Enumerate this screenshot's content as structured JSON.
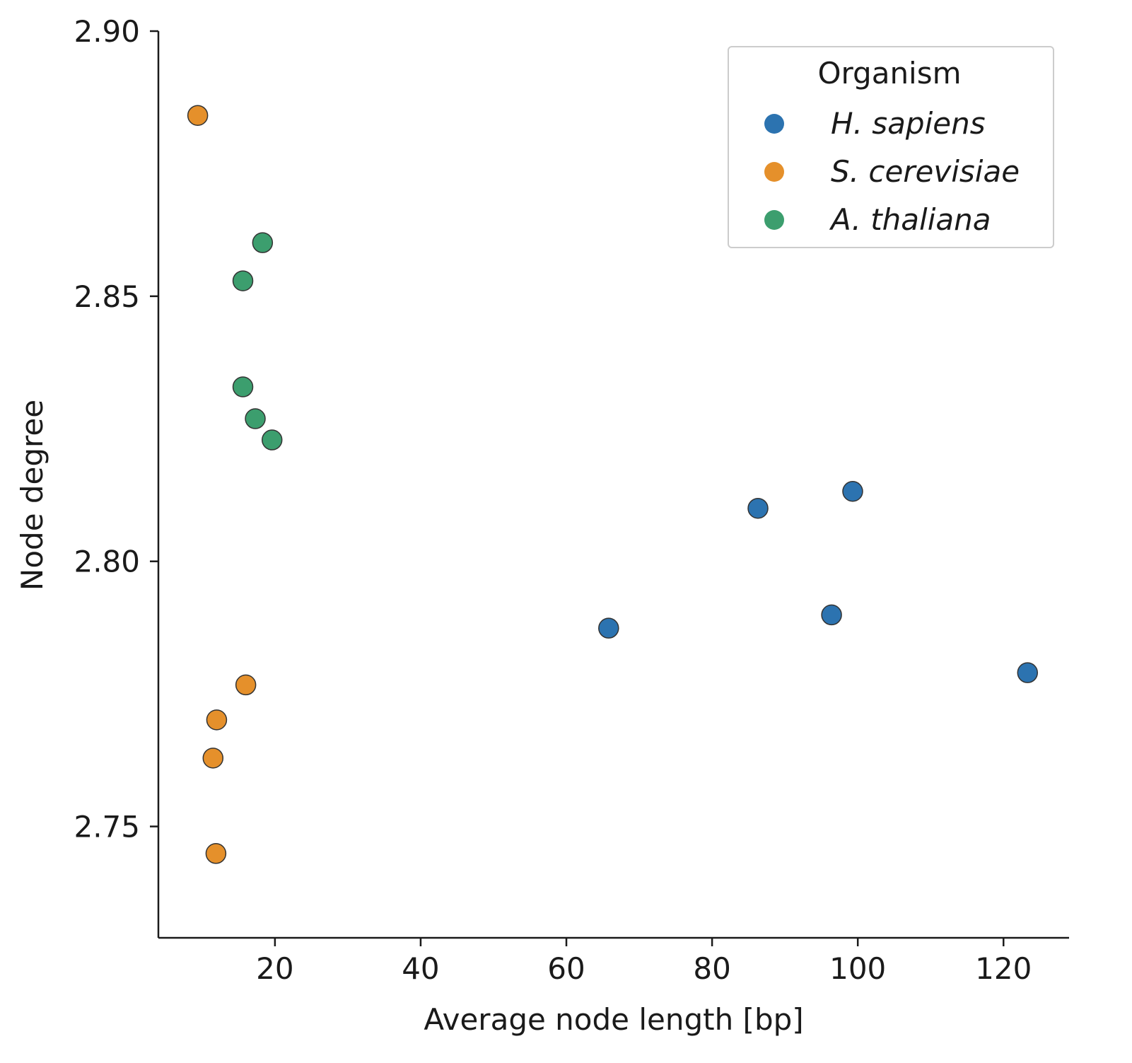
{
  "chart_data": {
    "type": "scatter",
    "title": "",
    "xlabel": "Average node length [bp]",
    "ylabel": "Node degree",
    "xlim": [
      4,
      129
    ],
    "ylim": [
      2.729,
      2.9
    ],
    "xticks": [
      20,
      40,
      60,
      80,
      100,
      120
    ],
    "xtick_labels": [
      "20",
      "40",
      "60",
      "80",
      "100",
      "120"
    ],
    "yticks": [
      2.75,
      2.8,
      2.85,
      2.9
    ],
    "ytick_labels": [
      "2.75",
      "2.80",
      "2.85",
      "2.90"
    ],
    "grid": false,
    "legend": {
      "title": "Organism",
      "placement": "top-right"
    },
    "series": [
      {
        "name": "H. sapiens",
        "color": "#2c73b0",
        "points": [
          {
            "x": 65.8,
            "y": 2.7874
          },
          {
            "x": 86.3,
            "y": 2.81
          },
          {
            "x": 99.3,
            "y": 2.8132
          },
          {
            "x": 96.4,
            "y": 2.7899
          },
          {
            "x": 123.3,
            "y": 2.779
          }
        ]
      },
      {
        "name": "S. cerevisiae",
        "color": "#e5902b",
        "points": [
          {
            "x": 9.4,
            "y": 2.8841
          },
          {
            "x": 16.0,
            "y": 2.7767
          },
          {
            "x": 12.0,
            "y": 2.7701
          },
          {
            "x": 11.5,
            "y": 2.7629
          },
          {
            "x": 11.9,
            "y": 2.7449
          }
        ]
      },
      {
        "name": "A. thaliana",
        "color": "#3c9e6e",
        "points": [
          {
            "x": 18.3,
            "y": 2.8601
          },
          {
            "x": 15.6,
            "y": 2.8529
          },
          {
            "x": 15.6,
            "y": 2.8329
          },
          {
            "x": 17.3,
            "y": 2.8269
          },
          {
            "x": 19.6,
            "y": 2.8229
          }
        ]
      }
    ]
  }
}
